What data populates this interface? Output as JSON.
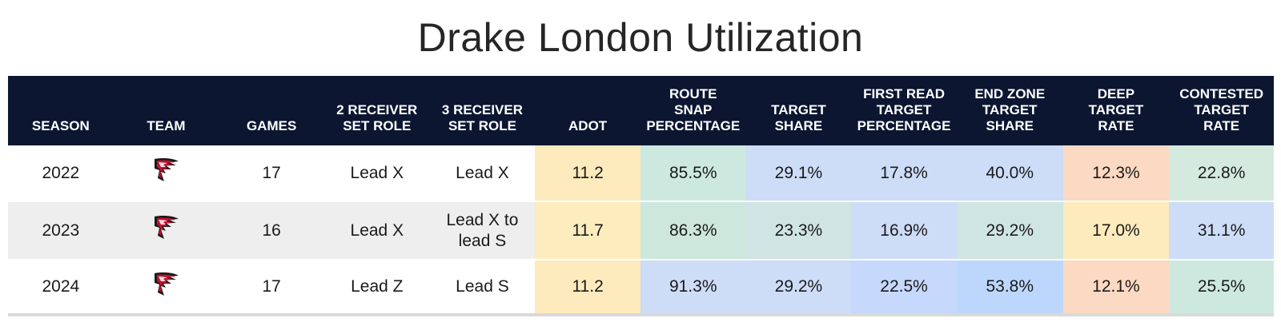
{
  "title": "Drake London Utilization",
  "columns": [
    "SEASON",
    "TEAM",
    "GAMES",
    "2 RECEIVER\nSET ROLE",
    "3 RECEIVER\nSET ROLE",
    "ADOT",
    "ROUTE\nSNAP\nPERCENTAGE",
    "TARGET\nSHARE",
    "FIRST READ\nTARGET\nPERCENTAGE",
    "END ZONE\nTARGET\nSHARE",
    "DEEP\nTARGET\nRATE",
    "CONTESTED\nTARGET\nRATE"
  ],
  "rows": [
    {
      "season": "2022",
      "team_icon": "atlanta-falcons-logo",
      "games": "17",
      "role2": "Lead X",
      "role3": "Lead X",
      "adot": "11.2",
      "route_snap": "85.5%",
      "target_share": "29.1%",
      "first_read": "17.8%",
      "end_zone": "40.0%",
      "deep": "12.3%",
      "contested": "22.8%",
      "colors": [
        "#fdebbd",
        "#cde9df",
        "#cddcf7",
        "#cddcf7",
        "#cddcf7",
        "#fcd9c2",
        "#d4eadf"
      ]
    },
    {
      "season": "2023",
      "team_icon": "atlanta-falcons-logo",
      "games": "16",
      "role2": "Lead X",
      "role3": "Lead X to\nlead S",
      "adot": "11.7",
      "route_snap": "86.3%",
      "target_share": "23.3%",
      "first_read": "16.9%",
      "end_zone": "29.2%",
      "deep": "17.0%",
      "contested": "31.1%",
      "colors": [
        "#fdecbd",
        "#cde7dd",
        "#cfe4e3",
        "#cddcf7",
        "#cfe5e1",
        "#fdebbd",
        "#cddcf7"
      ]
    },
    {
      "season": "2024",
      "team_icon": "atlanta-falcons-logo",
      "games": "17",
      "role2": "Lead Z",
      "role3": "Lead S",
      "adot": "11.2",
      "route_snap": "91.3%",
      "target_share": "29.2%",
      "first_read": "22.5%",
      "end_zone": "53.8%",
      "deep": "12.1%",
      "contested": "25.5%",
      "colors": [
        "#fdebbd",
        "#cddcf7",
        "#cddcf7",
        "#c6d8fb",
        "#bcd7fb",
        "#fcd9c2",
        "#cde9df"
      ]
    }
  ],
  "chart_data": {
    "type": "table",
    "title": "Drake London Utilization",
    "columns": [
      "SEASON",
      "TEAM",
      "GAMES",
      "2 RECEIVER SET ROLE",
      "3 RECEIVER SET ROLE",
      "ADOT",
      "ROUTE SNAP PERCENTAGE",
      "TARGET SHARE",
      "FIRST READ TARGET PERCENTAGE",
      "END ZONE TARGET SHARE",
      "DEEP TARGET RATE",
      "CONTESTED TARGET RATE"
    ],
    "rows": [
      [
        "2022",
        "ATL",
        17,
        "Lead X",
        "Lead X",
        11.2,
        "85.5%",
        "29.1%",
        "17.8%",
        "40.0%",
        "12.3%",
        "22.8%"
      ],
      [
        "2023",
        "ATL",
        16,
        "Lead X",
        "Lead X to lead S",
        11.7,
        "86.3%",
        "23.3%",
        "16.9%",
        "29.2%",
        "17.0%",
        "31.1%"
      ],
      [
        "2024",
        "ATL",
        17,
        "Lead Z",
        "Lead S",
        11.2,
        "91.3%",
        "29.2%",
        "22.5%",
        "53.8%",
        "12.1%",
        "25.5%"
      ]
    ]
  }
}
